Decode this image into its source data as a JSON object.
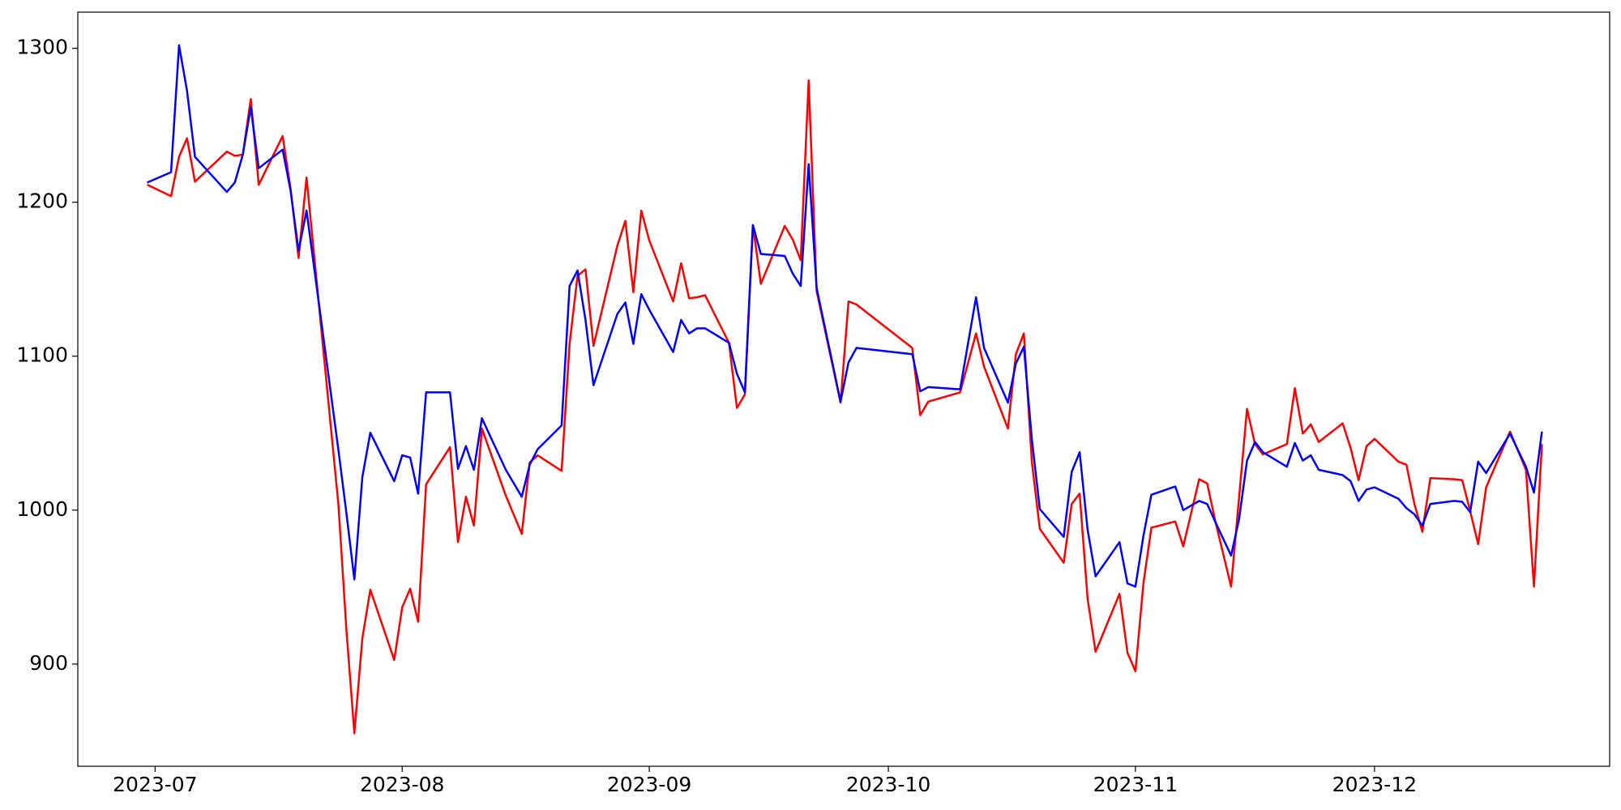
{
  "chart_data": {
    "type": "line",
    "x": [
      19538,
      19541,
      19542,
      19543,
      19544,
      19548,
      19549,
      19550,
      19551,
      19552,
      19555,
      19556,
      19557,
      19558,
      19562,
      19563,
      19564,
      19565,
      19566,
      19569,
      19570,
      19571,
      19572,
      19573,
      19576,
      19577,
      19578,
      19579,
      19580,
      19583,
      19585,
      19586,
      19587,
      19590,
      19591,
      19592,
      19593,
      19594,
      19597,
      19598,
      19599,
      19600,
      19601,
      19604,
      19605,
      19606,
      19607,
      19608,
      19611,
      19612,
      19613,
      19614,
      19615,
      19618,
      19619,
      19620,
      19621,
      19622,
      19625,
      19626,
      19627,
      19634,
      19635,
      19636,
      19640,
      19642,
      19643,
      19646,
      19647,
      19648,
      19649,
      19650,
      19653,
      19654,
      19655,
      19656,
      19657,
      19660,
      19661,
      19662,
      19663,
      19664,
      19667,
      19668,
      19670,
      19671,
      19672,
      19674,
      19675,
      19676,
      19677,
      19678,
      19681,
      19682,
      19683,
      19684,
      19685,
      19688,
      19689,
      19690,
      19691,
      19692,
      19695,
      19696,
      19697,
      19698,
      19699,
      19702,
      19703,
      19704,
      19705,
      19706,
      19709,
      19711,
      19712,
      19713
    ],
    "series": [
      {
        "color": "#ff0000",
        "values": [
          1211.4,
          1204,
          1229.5,
          1241.6,
          1213.4,
          1232.9,
          1230.2,
          1230.9,
          1267,
          1211.4,
          1243,
          1208.7,
          1163.8,
          1216,
          1003.4,
          922.1,
          855,
          916.8,
          948.3,
          902.7,
          936.9,
          949,
          927.5,
          1016.8,
          1040.9,
          979.2,
          1008.7,
          990,
          1053,
          1009.4,
          984.6,
          1030.9,
          1035.6,
          1025.5,
          1108,
          1152.3,
          1156.4,
          1106.7,
          1171.9,
          1187.9,
          1141.6,
          1194.6,
          1175.2,
          1135.6,
          1160.4,
          1137.6,
          1138.3,
          1139.6,
          1108.7,
          1066.4,
          1075.2,
          1185.2,
          1147,
          1184.6,
          1175.8,
          1162.4,
          1279.2,
          1142.3,
          1069.8,
          1135.6,
          1133.6,
          1105.4,
          1061.7,
          1070.5,
          1076.5,
          1114.8,
          1093.3,
          1053,
          1101.3,
          1114.8,
          1031.5,
          987.9,
          965.8,
          1004,
          1010.7,
          942.3,
          908,
          945.6,
          907.4,
          895.3,
          952.4,
          988.6,
          992.6,
          976.5,
          1020.1,
          1017.4,
          993.3,
          950.3,
          1008,
          1065.8,
          1042.9,
          1036.2,
          1042.9,
          1079.2,
          1049.7,
          1055.7,
          1044.3,
          1056.4,
          1040.3,
          1019.5,
          1041.6,
          1046.3,
          1031.5,
          1029.5,
          1004,
          985.9,
          1020.8,
          1020.1,
          1019.5,
          999.3,
          977.9,
          1014.8,
          1051,
          1026.2,
          950.3,
          1042.9
        ]
      },
      {
        "color": "#0000ff",
        "values": [
          1212.8,
          1219.5,
          1302,
          1272.5,
          1229.5,
          1206.7,
          1212.8,
          1230.9,
          1261.7,
          1222.1,
          1234.2,
          1207.4,
          1168.5,
          1194.6,
          1038.9,
          998,
          955,
          1021.5,
          1050.3,
          1018.8,
          1035.6,
          1034.2,
          1010.7,
          1076.5,
          1076.5,
          1026.8,
          1041.6,
          1026.2,
          1059.7,
          1026.2,
          1008.7,
          1029.5,
          1039.6,
          1055,
          1145.6,
          1155.7,
          1123.5,
          1081.2,
          1127.5,
          1134.9,
          1108,
          1140.3,
          1130.2,
          1102.7,
          1123.5,
          1114.8,
          1118.1,
          1118.1,
          1108.7,
          1088.6,
          1076.5,
          1185.2,
          1166.4,
          1165.1,
          1153.7,
          1145.6,
          1224.8,
          1144.3,
          1070.5,
          1096,
          1105.4,
          1101.3,
          1077.2,
          1079.9,
          1078.5,
          1138.3,
          1105.4,
          1069.8,
          1095.3,
          1106.1,
          1046.3,
          1000.7,
          982.6,
          1024.8,
          1037.6,
          987.2,
          957,
          979.2,
          952.4,
          950.3,
          983.2,
          1010,
          1015.4,
          1000,
          1006,
          1004,
          992.6,
          970.5,
          994,
          1032.2,
          1044.3,
          1037.6,
          1028.2,
          1043.6,
          1032.2,
          1035.6,
          1026.2,
          1022.8,
          1018.8,
          1006,
          1013.4,
          1014.8,
          1007.4,
          1001.3,
          997.3,
          989.9,
          1004,
          1006,
          1005.4,
          998.7,
          1031.5,
          1024.1,
          1049.7,
          1028.2,
          1011.4,
          1051
        ]
      }
    ],
    "xlim": [
      19529.3,
      19721.5
    ],
    "ylim": [
      833.6,
      1323.5
    ],
    "xticks": [
      {
        "value": 19539,
        "label": "2023-07"
      },
      {
        "value": 19570,
        "label": "2023-08"
      },
      {
        "value": 19601,
        "label": "2023-09"
      },
      {
        "value": 19631,
        "label": "2023-10"
      },
      {
        "value": 19662,
        "label": "2023-11"
      },
      {
        "value": 19692,
        "label": "2023-12"
      }
    ],
    "yticks": [
      900,
      1000,
      1100,
      1200,
      1300
    ],
    "grid": false
  }
}
